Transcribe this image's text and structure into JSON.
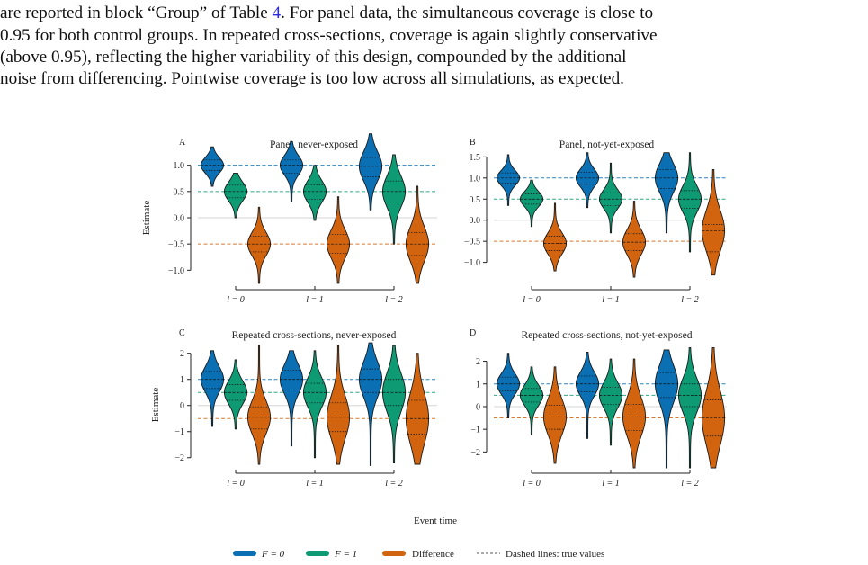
{
  "paragraph": {
    "line1_a": "are reported in block “Group” of Table ",
    "line1_ref": "4",
    "line1_b": ". For panel data, the simultaneous coverage is close to",
    "line2": "0.95 for both control groups. In repeated cross-sections, coverage is again slightly conservative",
    "line3": "(above 0.95), reflecting the higher variability of this design, compounded by the additional",
    "line4": "noise from differencing. Pointwise coverage is too low across all simulations, as expected."
  },
  "figure": {
    "x_axis_title": "Event time",
    "y_axis_title": "Estimate",
    "legend": {
      "items": [
        {
          "label": "F = 0",
          "color": "#0a6fb3"
        },
        {
          "label": "F = 1",
          "color": "#0e9a73"
        },
        {
          "label": "Difference",
          "color": "#d2640f"
        }
      ],
      "dashed_label": "Dashed lines: true values"
    },
    "colors": {
      "f0": "#0a6fb3",
      "f1": "#0e9a73",
      "diff": "#d2640f"
    }
  },
  "chart_data": [
    {
      "type": "violin",
      "panel": "A",
      "title": "Panel, never-exposed",
      "ylabel": "Estimate",
      "ylim": [
        -1.2,
        1.2
      ],
      "yticks": [
        -1.0,
        -0.5,
        0.0,
        0.5,
        1.0
      ],
      "ytick_labels": [
        "−1.0",
        "−0.5",
        "0.0",
        "0.5",
        "1.0"
      ],
      "categories": [
        "l = 0",
        "l = 1",
        "l = 2"
      ],
      "true_values": {
        "F = 0": 1.0,
        "F = 1": 0.5,
        "Difference": -0.5
      },
      "series": [
        {
          "name": "F = 0",
          "values": [
            {
              "min": 0.6,
              "q1": 0.9,
              "median": 1.0,
              "q3": 1.1,
              "max": 1.35
            },
            {
              "min": 0.3,
              "q1": 0.85,
              "median": 1.0,
              "q3": 1.1,
              "max": 1.45
            },
            {
              "min": 0.15,
              "q1": 0.78,
              "median": 0.98,
              "q3": 1.15,
              "max": 1.6
            }
          ]
        },
        {
          "name": "F = 1",
          "values": [
            {
              "min": 0.0,
              "q1": 0.38,
              "median": 0.5,
              "q3": 0.62,
              "max": 0.85
            },
            {
              "min": -0.05,
              "q1": 0.35,
              "median": 0.5,
              "q3": 0.63,
              "max": 1.0
            },
            {
              "min": -0.5,
              "q1": 0.3,
              "median": 0.5,
              "q3": 0.7,
              "max": 1.2
            }
          ]
        },
        {
          "name": "Difference",
          "values": [
            {
              "min": -1.25,
              "q1": -0.65,
              "median": -0.5,
              "q3": -0.35,
              "max": 0.2
            },
            {
              "min": -1.25,
              "q1": -0.68,
              "median": -0.5,
              "q3": -0.32,
              "max": 0.4
            },
            {
              "min": -1.25,
              "q1": -0.72,
              "median": -0.5,
              "q3": -0.28,
              "max": 0.6
            }
          ]
        }
      ]
    },
    {
      "type": "violin",
      "panel": "B",
      "title": "Panel, not-yet-exposed",
      "ylabel": "",
      "ylim": [
        -1.2,
        1.55
      ],
      "yticks": [
        -1.0,
        -0.5,
        0.0,
        0.5,
        1.0,
        1.5
      ],
      "ytick_labels": [
        "−1.0",
        "−0.5",
        "0.0",
        "0.5",
        "1.0",
        "1.5"
      ],
      "categories": [
        "l = 0",
        "l = 1",
        "l = 2"
      ],
      "true_values": {
        "F = 0": 1.0,
        "F = 1": 0.5,
        "Difference": -0.5
      },
      "series": [
        {
          "name": "F = 0",
          "values": [
            {
              "min": 0.35,
              "q1": 0.88,
              "median": 1.0,
              "q3": 1.12,
              "max": 1.55
            },
            {
              "min": 0.3,
              "q1": 0.85,
              "median": 1.0,
              "q3": 1.13,
              "max": 1.6
            },
            {
              "min": -0.3,
              "q1": 0.75,
              "median": 1.0,
              "q3": 1.2,
              "max": 1.6
            }
          ]
        },
        {
          "name": "F = 1",
          "values": [
            {
              "min": -0.15,
              "q1": 0.38,
              "median": 0.5,
              "q3": 0.62,
              "max": 0.95
            },
            {
              "min": -0.3,
              "q1": 0.35,
              "median": 0.5,
              "q3": 0.65,
              "max": 1.35
            },
            {
              "min": -0.75,
              "q1": 0.28,
              "median": 0.5,
              "q3": 0.7,
              "max": 1.6
            }
          ]
        },
        {
          "name": "Difference",
          "values": [
            {
              "min": -1.2,
              "q1": -0.72,
              "median": -0.55,
              "q3": -0.38,
              "max": 0.4
            },
            {
              "min": -1.35,
              "q1": -0.72,
              "median": -0.52,
              "q3": -0.32,
              "max": 0.45
            },
            {
              "min": -1.3,
              "q1": -0.75,
              "median": -0.25,
              "q3": -0.1,
              "max": 1.2
            }
          ]
        }
      ]
    },
    {
      "type": "violin",
      "panel": "C",
      "title": "Repeated cross-sections, never-exposed",
      "ylabel": "Estimate",
      "ylim": [
        -2.25,
        2.3
      ],
      "yticks": [
        -2,
        -1,
        0,
        1,
        2
      ],
      "ytick_labels": [
        "−2",
        "−1",
        "0",
        "1",
        "2"
      ],
      "categories": [
        "l = 0",
        "l = 1",
        "l = 2"
      ],
      "true_values": {
        "F = 0": 1.0,
        "F = 1": 0.5,
        "Difference": -0.5
      },
      "series": [
        {
          "name": "F = 0",
          "values": [
            {
              "min": -0.8,
              "q1": 0.65,
              "median": 1.0,
              "q3": 1.3,
              "max": 2.1
            },
            {
              "min": -1.55,
              "q1": 0.6,
              "median": 1.0,
              "q3": 1.35,
              "max": 2.1
            },
            {
              "min": -2.3,
              "q1": 0.5,
              "median": 1.0,
              "q3": 1.4,
              "max": 2.4
            }
          ]
        },
        {
          "name": "F = 1",
          "values": [
            {
              "min": -0.9,
              "q1": 0.2,
              "median": 0.5,
              "q3": 0.8,
              "max": 1.75
            },
            {
              "min": -2.0,
              "q1": 0.1,
              "median": 0.5,
              "q3": 0.85,
              "max": 2.1
            },
            {
              "min": -2.2,
              "q1": 0.0,
              "median": 0.5,
              "q3": 1.0,
              "max": 2.3
            }
          ]
        },
        {
          "name": "Difference",
          "values": [
            {
              "min": -2.25,
              "q1": -0.9,
              "median": -0.45,
              "q3": -0.05,
              "max": 2.3
            },
            {
              "min": -2.25,
              "q1": -1.0,
              "median": -0.45,
              "q3": 0.1,
              "max": 2.3
            },
            {
              "min": -2.25,
              "q1": -1.1,
              "median": -0.5,
              "q3": 0.2,
              "max": 2.0
            }
          ]
        }
      ]
    },
    {
      "type": "violin",
      "panel": "D",
      "title": "Repeated cross-sections, not-yet-exposed",
      "ylabel": "",
      "ylim": [
        -2.7,
        2.3
      ],
      "yticks": [
        -2,
        -1,
        0,
        1,
        2
      ],
      "ytick_labels": [
        "−2",
        "−1",
        "0",
        "1",
        "2"
      ],
      "categories": [
        "l = 0",
        "l = 1",
        "l = 2"
      ],
      "true_values": {
        "F = 0": 1.0,
        "F = 1": 0.5,
        "Difference": -0.5
      },
      "series": [
        {
          "name": "F = 0",
          "values": [
            {
              "min": -0.5,
              "q1": 0.7,
              "median": 1.0,
              "q3": 1.3,
              "max": 2.35
            },
            {
              "min": -1.4,
              "q1": 0.65,
              "median": 1.0,
              "q3": 1.35,
              "max": 2.4
            },
            {
              "min": -2.7,
              "q1": 0.4,
              "median": 1.0,
              "q3": 1.5,
              "max": 2.5
            }
          ]
        },
        {
          "name": "F = 1",
          "values": [
            {
              "min": -1.25,
              "q1": 0.2,
              "median": 0.5,
              "q3": 0.8,
              "max": 1.75
            },
            {
              "min": -1.7,
              "q1": 0.1,
              "median": 0.5,
              "q3": 0.85,
              "max": 2.1
            },
            {
              "min": -2.7,
              "q1": 0.0,
              "median": 0.5,
              "q3": 1.0,
              "max": 2.6
            }
          ]
        },
        {
          "name": "Difference",
          "values": [
            {
              "min": -2.5,
              "q1": -1.0,
              "median": -0.45,
              "q3": 0.05,
              "max": 1.75
            },
            {
              "min": -2.7,
              "q1": -1.05,
              "median": -0.45,
              "q3": 0.1,
              "max": 2.1
            },
            {
              "min": -2.7,
              "q1": -1.3,
              "median": -0.5,
              "q3": 0.3,
              "max": 2.6
            }
          ]
        }
      ]
    }
  ]
}
